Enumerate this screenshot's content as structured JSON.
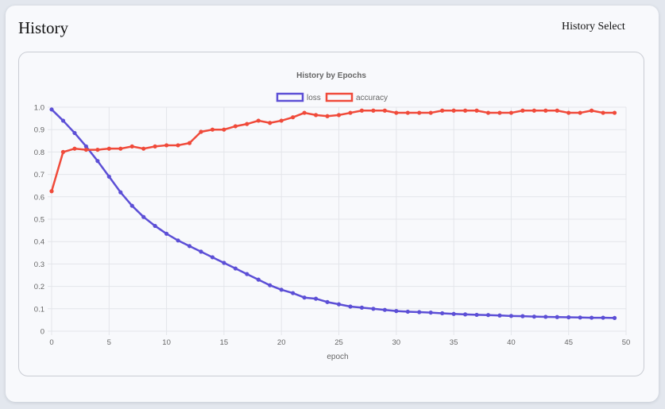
{
  "page": {
    "title": "History",
    "select_label": "History Select"
  },
  "colors": {
    "loss": "#5c4fd6",
    "accuracy": "#f04a3a",
    "grid": "#e3e5ea"
  },
  "chart_data": {
    "type": "line",
    "title": "History by Epochs",
    "xlabel": "epoch",
    "ylabel": "",
    "xlim": [
      0,
      50
    ],
    "ylim": [
      0,
      1.0
    ],
    "x_ticks": [
      "0",
      "5",
      "10",
      "15",
      "20",
      "25",
      "30",
      "35",
      "40",
      "45",
      "50"
    ],
    "y_ticks": [
      "0",
      "0.1",
      "0.2",
      "0.3",
      "0.4",
      "0.5",
      "0.6",
      "0.7",
      "0.8",
      "0.9",
      "1.0"
    ],
    "grid": true,
    "legend_position": "top",
    "x": [
      0,
      1,
      2,
      3,
      4,
      5,
      6,
      7,
      8,
      9,
      10,
      11,
      12,
      13,
      14,
      15,
      16,
      17,
      18,
      19,
      20,
      21,
      22,
      23,
      24,
      25,
      26,
      27,
      28,
      29,
      30,
      31,
      32,
      33,
      34,
      35,
      36,
      37,
      38,
      39,
      40,
      41,
      42,
      43,
      44,
      45,
      46,
      47,
      48,
      49
    ],
    "series": [
      {
        "name": "loss",
        "color_key": "loss",
        "values": [
          0.99,
          0.94,
          0.885,
          0.825,
          0.76,
          0.69,
          0.62,
          0.56,
          0.51,
          0.47,
          0.435,
          0.405,
          0.38,
          0.355,
          0.33,
          0.305,
          0.28,
          0.255,
          0.23,
          0.205,
          0.185,
          0.17,
          0.15,
          0.145,
          0.13,
          0.12,
          0.11,
          0.105,
          0.1,
          0.095,
          0.09,
          0.087,
          0.085,
          0.083,
          0.08,
          0.077,
          0.075,
          0.073,
          0.072,
          0.07,
          0.068,
          0.067,
          0.065,
          0.064,
          0.063,
          0.062,
          0.061,
          0.06,
          0.06,
          0.059
        ]
      },
      {
        "name": "accuracy",
        "color_key": "accuracy",
        "values": [
          0.625,
          0.8,
          0.815,
          0.81,
          0.81,
          0.815,
          0.815,
          0.825,
          0.815,
          0.825,
          0.83,
          0.83,
          0.84,
          0.89,
          0.9,
          0.9,
          0.915,
          0.925,
          0.94,
          0.93,
          0.94,
          0.955,
          0.975,
          0.965,
          0.96,
          0.965,
          0.975,
          0.985,
          0.985,
          0.985,
          0.975,
          0.975,
          0.975,
          0.975,
          0.985,
          0.985,
          0.985,
          0.985,
          0.975,
          0.975,
          0.975,
          0.985,
          0.985,
          0.985,
          0.985,
          0.975,
          0.975,
          0.985,
          0.975,
          0.975
        ]
      }
    ]
  }
}
